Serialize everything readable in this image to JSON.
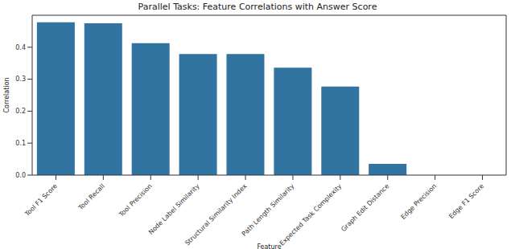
{
  "chart_data": {
    "type": "bar",
    "title": "Parallel Tasks: Feature Correlations with Answer Score",
    "x_label": "Feature",
    "y_label": "Correlation",
    "categories": [
      "Tool F1 Score",
      "Tool Recall",
      "Tool Precision",
      "Node Label Similarity",
      "Structural Similarity Index",
      "Path Length Similarity",
      "Expected Task Complexity",
      "Graph Edit Distance",
      "Edge Precision",
      "Edge F1 Score"
    ],
    "values": [
      0.478,
      0.475,
      0.413,
      0.379,
      0.379,
      0.336,
      0.277,
      0.035,
      0,
      0
    ],
    "color": "#3274a1",
    "ylim": [
      0,
      0.5
    ],
    "yticks": [
      {
        "value": 0,
        "label": "0.0"
      },
      0.1,
      0.2,
      0.3,
      0.4
    ],
    "grid": false
  }
}
